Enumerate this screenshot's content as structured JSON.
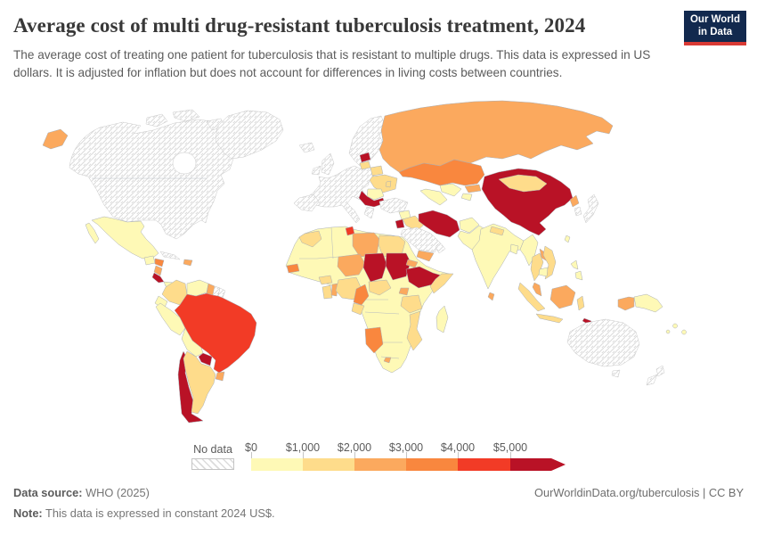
{
  "header": {
    "title": "Average cost of multi drug-resistant tuberculosis treatment, 2024",
    "subtitle": "The average cost of treating one patient for tuberculosis that is resistant to multiple drugs. This data is expressed in US dollars. It is adjusted for inflation but does not account for differences in living costs between countries.",
    "logo_line1": "Our World",
    "logo_line2": "in Data"
  },
  "footer": {
    "source_label": "Data source:",
    "source_value": " WHO (2025)",
    "note_label": "Note:",
    "note_value": " This data is expressed in constant 2024 US$.",
    "link": "OurWorldinData.org/tuberculosis | CC BY"
  },
  "chart_data": {
    "type": "choropleth",
    "title": "Average cost of multi drug-resistant tuberculosis treatment, 2024",
    "unit": "constant 2024 US$ per patient",
    "legend": {
      "no_data_label": "No data",
      "tick_labels": [
        "$0",
        "$1,000",
        "$2,000",
        "$3,000",
        "$4,000",
        "$5,000"
      ],
      "bin_ranges": [
        "$0-$1,000",
        "$1,000-$2,000",
        "$2,000-$3,000",
        "$3,000-$4,000",
        "$4,000-$5,000",
        "more than $5,000"
      ],
      "bin_colors": [
        "#fef9b6",
        "#fedc8b",
        "#fba95e",
        "#f9873e",
        "#f23b26",
        "#b91226"
      ],
      "no_data_style": "diagonal-hatch"
    },
    "countries": {
      "canada_usa": {
        "n": "Canada & United States",
        "bin": "nd"
      },
      "greenland": {
        "n": "Greenland",
        "bin": "nd"
      },
      "arctic_islands": {
        "n": "Canadian Arctic Islands",
        "bin": "nd"
      },
      "chukotka_russia": {
        "n": "Russia (far east)",
        "bin": 2
      },
      "mexico": {
        "n": "Mexico",
        "bin": 0
      },
      "baja_mexico": {
        "n": "Mexico (Baja)",
        "bin": 0
      },
      "guatemala": {
        "n": "Guatemala",
        "bin": 0
      },
      "honduras": {
        "n": "Honduras",
        "bin": 3
      },
      "nicaragua": {
        "n": "Nicaragua",
        "bin": 2
      },
      "costa_rica": {
        "n": "Costa Rica",
        "bin": 5
      },
      "panama": {
        "n": "Panama",
        "bin": 0
      },
      "cuba": {
        "n": "Cuba",
        "bin": "nd"
      },
      "hispaniola": {
        "n": "Haiti / Dominican Rep.",
        "bin": 2
      },
      "colombia": {
        "n": "Colombia",
        "bin": 1
      },
      "venezuela": {
        "n": "Venezuela",
        "bin": 0
      },
      "guyana": {
        "n": "Guyana",
        "bin": 2
      },
      "suriname": {
        "n": "Suriname",
        "bin": "nd"
      },
      "french_guiana": {
        "n": "French Guiana",
        "bin": "nd"
      },
      "ecuador": {
        "n": "Ecuador",
        "bin": 0
      },
      "peru": {
        "n": "Peru",
        "bin": 0
      },
      "brazil": {
        "n": "Brazil",
        "bin": 4
      },
      "bolivia": {
        "n": "Bolivia",
        "bin": 0
      },
      "paraguay": {
        "n": "Paraguay",
        "bin": 5
      },
      "uruguay": {
        "n": "Uruguay",
        "bin": 2
      },
      "argentina": {
        "n": "Argentina",
        "bin": 1
      },
      "chile": {
        "n": "Chile",
        "bin": 5
      },
      "iceland": {
        "n": "Iceland",
        "bin": "nd"
      },
      "uk": {
        "n": "United Kingdom",
        "bin": "nd"
      },
      "ireland": {
        "n": "Ireland",
        "bin": "nd"
      },
      "scandinavia": {
        "n": "Norway / Sweden / Finland",
        "bin": "nd"
      },
      "europe_west": {
        "n": "Western & Central Europe",
        "bin": "nd"
      },
      "iberia": {
        "n": "Spain & Portugal",
        "bin": "nd"
      },
      "greece": {
        "n": "Greece",
        "bin": "nd"
      },
      "turkey": {
        "n": "Turkey",
        "bin": "nd"
      },
      "latvia": {
        "n": "Latvia",
        "bin": 5
      },
      "lithuania": {
        "n": "Lithuania",
        "bin": 1
      },
      "belarus": {
        "n": "Belarus",
        "bin": 1
      },
      "ukraine": {
        "n": "Ukraine",
        "bin": 1
      },
      "moldova": {
        "n": "Moldova",
        "bin": 1
      },
      "romania": {
        "n": "Romania",
        "bin": 0
      },
      "serbia_bulgaria": {
        "n": "Serbia / Bulgaria",
        "bin": 5
      },
      "russia": {
        "n": "Russia",
        "bin": 2
      },
      "kazakhstan": {
        "n": "Kazakhstan",
        "bin": 3
      },
      "uzbekistan": {
        "n": "Uzbekistan",
        "bin": 0
      },
      "turkmenistan": {
        "n": "Turkmenistan",
        "bin": 0
      },
      "kyrgyzstan": {
        "n": "Kyrgyzstan",
        "bin": 2
      },
      "tajikistan": {
        "n": "Tajikistan",
        "bin": 0
      },
      "syria": {
        "n": "Syria",
        "bin": 0
      },
      "iraq": {
        "n": "Iraq",
        "bin": 1
      },
      "jordan": {
        "n": "Jordan",
        "bin": 5
      },
      "saudi_arabia": {
        "n": "Saudi Arabia",
        "bin": "nd"
      },
      "yemen": {
        "n": "Yemen",
        "bin": 2
      },
      "oman": {
        "n": "Oman",
        "bin": "nd"
      },
      "iran": {
        "n": "Iran",
        "bin": 5
      },
      "afghanistan": {
        "n": "Afghanistan",
        "bin": 0
      },
      "pakistan": {
        "n": "Pakistan",
        "bin": 0
      },
      "india": {
        "n": "India",
        "bin": 0
      },
      "nepal": {
        "n": "Nepal",
        "bin": 1
      },
      "bangladesh": {
        "n": "Bangladesh",
        "bin": 0
      },
      "sri_lanka": {
        "n": "Sri Lanka",
        "bin": 2
      },
      "china": {
        "n": "China",
        "bin": 5
      },
      "mongolia": {
        "n": "Mongolia",
        "bin": 1
      },
      "north_korea": {
        "n": "North Korea",
        "bin": 2
      },
      "south_korea": {
        "n": "South Korea",
        "bin": "nd"
      },
      "japan": {
        "n": "Japan",
        "bin": "nd"
      },
      "taiwan": {
        "n": "Taiwan",
        "bin": 0
      },
      "myanmar": {
        "n": "Myanmar",
        "bin": 0
      },
      "thailand": {
        "n": "Thailand",
        "bin": 1
      },
      "laos": {
        "n": "Laos",
        "bin": 2
      },
      "vietnam": {
        "n": "Vietnam",
        "bin": 1
      },
      "cambodia": {
        "n": "Cambodia",
        "bin": 0
      },
      "malaysia": {
        "n": "Malaysia",
        "bin": 2
      },
      "borneo_malaysia": {
        "n": "Malaysia (Borneo)",
        "bin": 2
      },
      "sumatra_indonesia": {
        "n": "Indonesia (Sumatra)",
        "bin": 1
      },
      "java_indonesia": {
        "n": "Indonesia (Java)",
        "bin": 1
      },
      "sulawesi_indonesia": {
        "n": "Indonesia (Sulawesi)",
        "bin": 1
      },
      "west_papua": {
        "n": "Indonesia (Papua)",
        "bin": 2
      },
      "png": {
        "n": "Papua New Guinea",
        "bin": 0
      },
      "timor": {
        "n": "Timor-Leste",
        "bin": 5
      },
      "philippines_n": {
        "n": "Philippines (north)",
        "bin": 0
      },
      "philippines_s": {
        "n": "Philippines (south)",
        "bin": 0
      },
      "fiji": {
        "n": "Pacific islands",
        "bin": 0
      },
      "australia": {
        "n": "Australia",
        "bin": "nd"
      },
      "tasmania": {
        "n": "Australia (Tasmania)",
        "bin": "nd"
      },
      "nz_north": {
        "n": "New Zealand (North)",
        "bin": "nd"
      },
      "nz_south": {
        "n": "New Zealand (South)",
        "bin": "nd"
      },
      "africa_base": {
        "n": "Algeria / Mali / DR Congo / Angola / Zambia / South Africa and others",
        "bin": 0
      },
      "morocco": {
        "n": "Morocco",
        "bin": 1
      },
      "tunisia": {
        "n": "Tunisia",
        "bin": 4
      },
      "libya": {
        "n": "Libya",
        "bin": 2
      },
      "egypt": {
        "n": "Egypt",
        "bin": 1
      },
      "senegal": {
        "n": "Senegal",
        "bin": 3
      },
      "burkina_faso": {
        "n": "Burkina Faso",
        "bin": 1
      },
      "ghana": {
        "n": "Ghana",
        "bin": 1
      },
      "benin_togo": {
        "n": "Benin / Togo",
        "bin": 2
      },
      "niger": {
        "n": "Niger",
        "bin": 2
      },
      "nigeria": {
        "n": "Nigeria",
        "bin": 1
      },
      "chad": {
        "n": "Chad",
        "bin": 5
      },
      "sudan": {
        "n": "Sudan",
        "bin": 5
      },
      "eritrea": {
        "n": "Eritrea",
        "bin": 2
      },
      "ethiopia": {
        "n": "Ethiopia",
        "bin": 5
      },
      "somalia": {
        "n": "Somalia",
        "bin": 1
      },
      "cameroon": {
        "n": "Cameroon",
        "bin": 3
      },
      "car": {
        "n": "Central African Republic",
        "bin": 1
      },
      "gabon_congo": {
        "n": "Gabon / Congo",
        "bin": 1
      },
      "uganda": {
        "n": "Uganda",
        "bin": 2
      },
      "tanzania": {
        "n": "Tanzania",
        "bin": 1
      },
      "mozambique": {
        "n": "Mozambique / Malawi",
        "bin": 1
      },
      "namibia": {
        "n": "Namibia",
        "bin": 3
      },
      "lesotho": {
        "n": "Lesotho",
        "bin": 2
      },
      "madagascar": {
        "n": "Madagascar",
        "bin": 0
      }
    }
  }
}
